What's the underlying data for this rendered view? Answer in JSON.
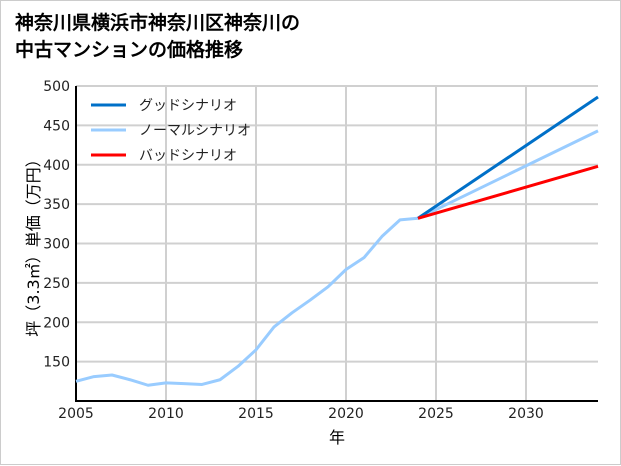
{
  "chart_data": {
    "type": "line",
    "title_lines": [
      "神奈川県横浜市神奈川区神奈川の",
      "中古マンションの価格推移"
    ],
    "xlabel": "年",
    "ylabel": "坪（3.3㎡）単価（万円）",
    "xlim": [
      2005,
      2034
    ],
    "ylim": [
      100,
      500
    ],
    "xticks": [
      2005,
      2010,
      2015,
      2020,
      2025,
      2030
    ],
    "yticks": [
      150,
      200,
      250,
      300,
      350,
      400,
      450,
      500
    ],
    "grid": true,
    "legend_position": "top-left",
    "series": [
      {
        "name": "グッドシナリオ",
        "color": "#0070C8",
        "x": [
          2024,
          2034
        ],
        "values": [
          332,
          486
        ]
      },
      {
        "name": "ノーマルシナリオ",
        "color": "#99CCFF",
        "x": [
          2005,
          2006,
          2007,
          2008,
          2009,
          2010,
          2011,
          2012,
          2013,
          2014,
          2015,
          2016,
          2017,
          2018,
          2019,
          2020,
          2021,
          2022,
          2023,
          2024,
          2034
        ],
        "values": [
          125,
          131,
          133,
          127,
          120,
          123,
          122,
          121,
          127,
          144,
          165,
          194,
          212,
          228,
          245,
          267,
          282,
          309,
          330,
          332,
          443
        ]
      },
      {
        "name": "バッドシナリオ",
        "color": "#FF0000",
        "x": [
          2024,
          2034
        ],
        "values": [
          332,
          398
        ]
      }
    ]
  }
}
